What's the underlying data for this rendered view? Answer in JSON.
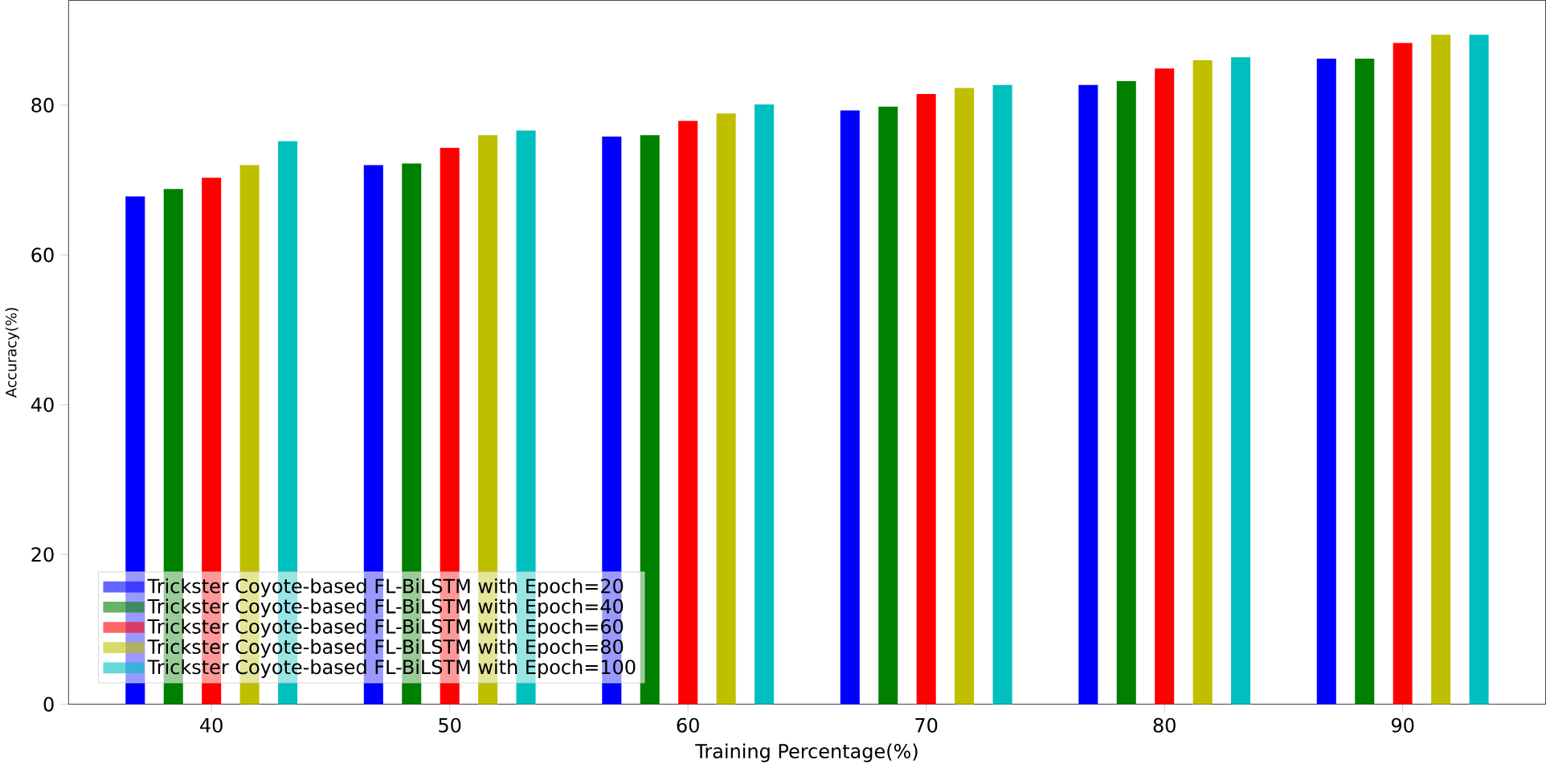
{
  "chart_data": {
    "type": "bar",
    "xlabel": "Training Percentage(%)",
    "ylabel": "Accuracy(%)",
    "categories": [
      "40",
      "50",
      "60",
      "70",
      "80",
      "90"
    ],
    "series": [
      {
        "name": "Trickster Coyote-based FL-BiLSTM with Epoch=20",
        "color": "#0000ff",
        "values": [
          67.8,
          72.0,
          75.8,
          79.3,
          82.7,
          86.2
        ]
      },
      {
        "name": "Trickster Coyote-based FL-BiLSTM with Epoch=40",
        "color": "#008000",
        "values": [
          68.8,
          72.2,
          76.0,
          79.8,
          83.2,
          86.2
        ]
      },
      {
        "name": "Trickster Coyote-based FL-BiLSTM with Epoch=60",
        "color": "#ff0000",
        "values": [
          70.3,
          74.3,
          77.9,
          81.5,
          84.9,
          88.3
        ]
      },
      {
        "name": "Trickster Coyote-based FL-BiLSTM with Epoch=80",
        "color": "#bfbf00",
        "values": [
          72.0,
          76.0,
          78.9,
          82.3,
          86.0,
          89.4
        ]
      },
      {
        "name": "Trickster Coyote-based FL-BiLSTM with Epoch=100",
        "color": "#00bfbf",
        "values": [
          75.2,
          76.6,
          80.1,
          82.7,
          86.4,
          89.4
        ]
      }
    ],
    "ylim": [
      0,
      94
    ],
    "yticks": [
      0,
      20,
      40,
      60,
      80
    ],
    "legend": "bottom left"
  }
}
